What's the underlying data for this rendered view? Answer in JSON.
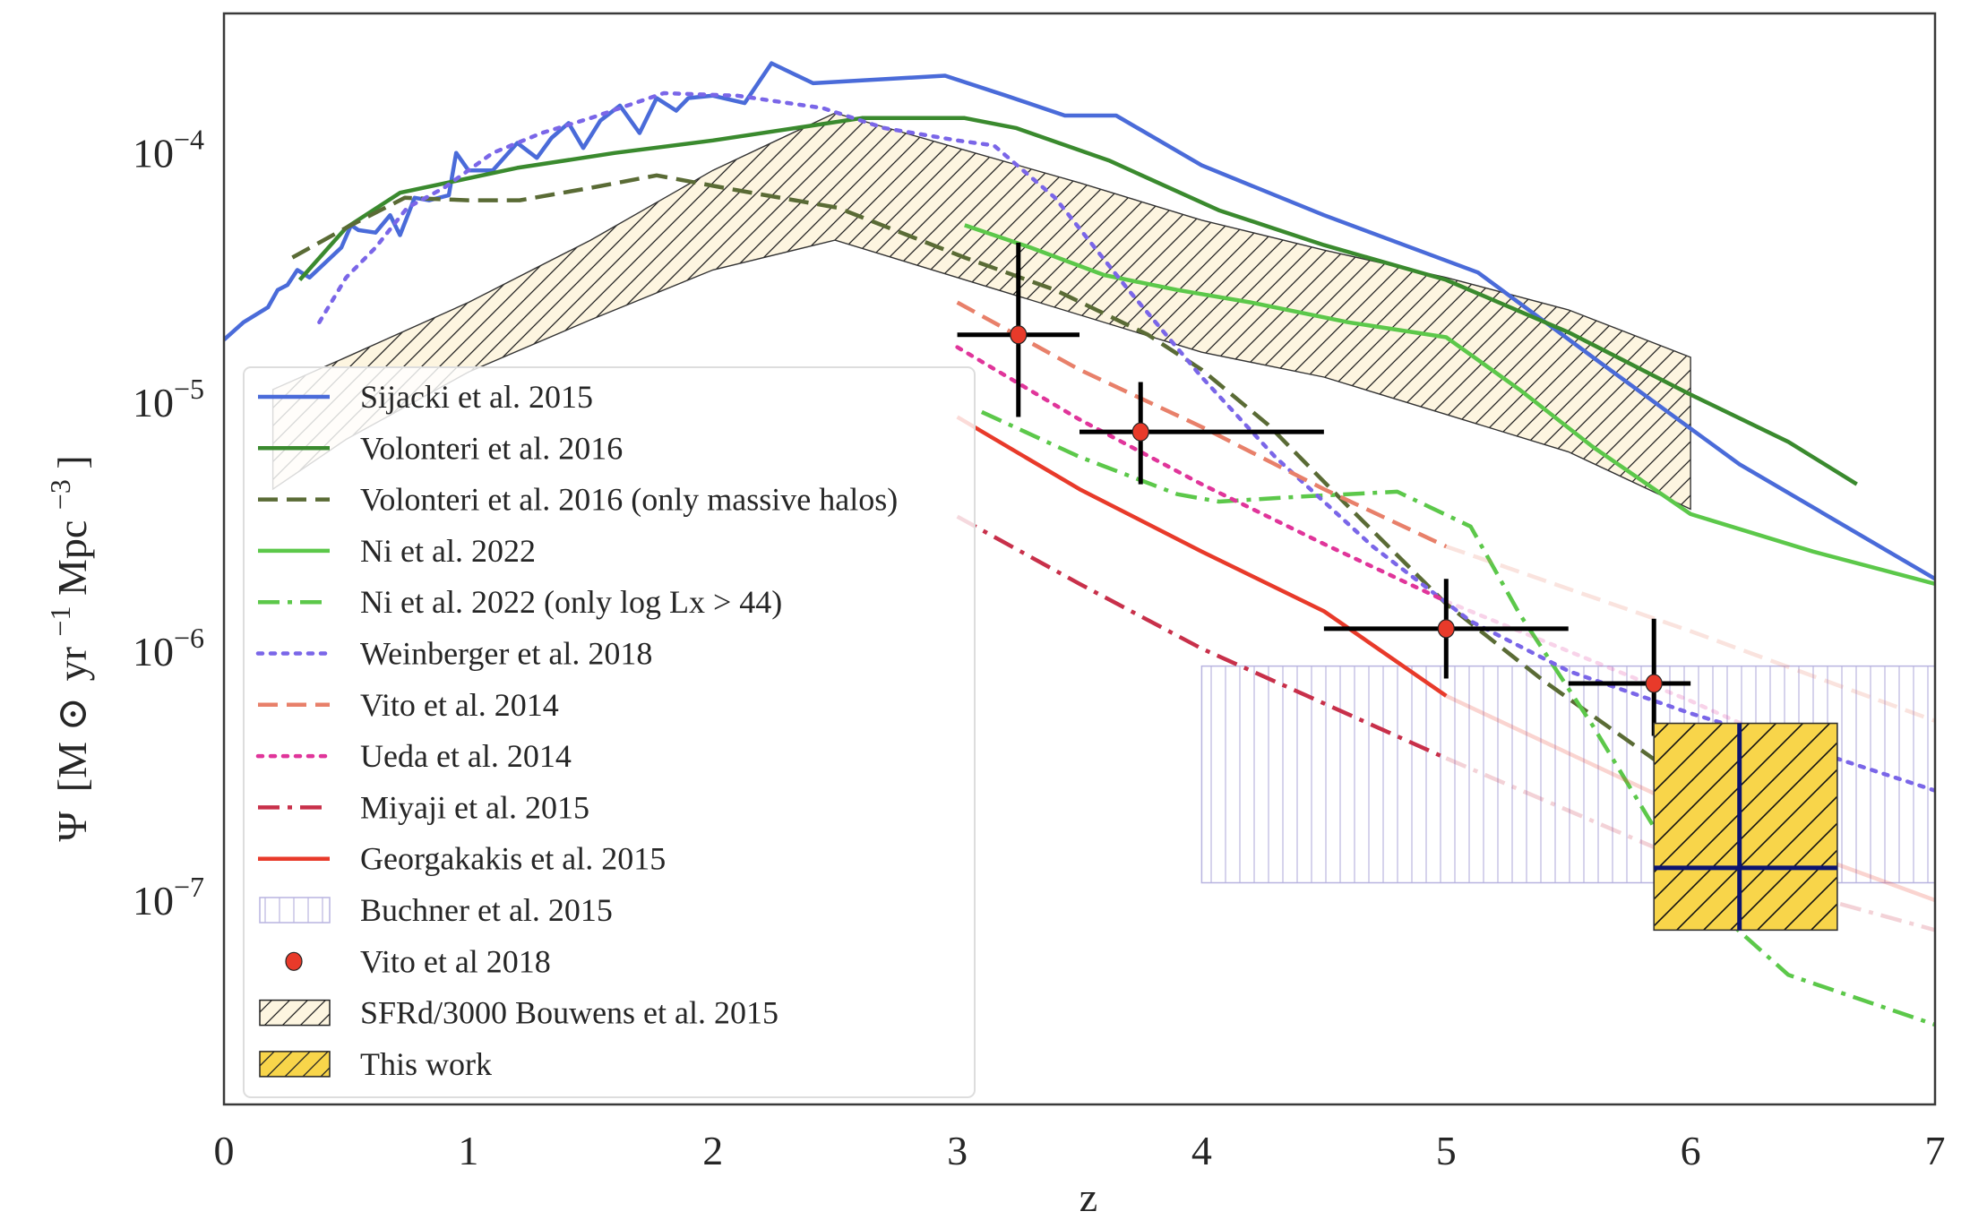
{
  "chart_data": {
    "type": "line",
    "title": "",
    "xlabel": "z",
    "ylabel": "Ψ [M⊙ yr⁻¹Mpc⁻³]",
    "ylabel_parts": {
      "psi": "Ψ",
      "open": "[M",
      "sun": "⊙",
      "yr": "yr",
      "yr_exp": "−1",
      "mpc": "Mpc",
      "mpc_exp": "−3",
      "close": "]"
    },
    "xlim": [
      0,
      7
    ],
    "ylim_log10": [
      -7.82,
      -3.44
    ],
    "yscale": "log",
    "grid": false,
    "legend_position": "lower-left",
    "x_ticks": [
      "0",
      "1",
      "2",
      "3",
      "4",
      "5",
      "6",
      "7"
    ],
    "x_tick_values": [
      0,
      1,
      2,
      3,
      4,
      5,
      6,
      7
    ],
    "y_ticks": [
      {
        "base": "10",
        "exp": "−4",
        "log": -4
      },
      {
        "base": "10",
        "exp": "−5",
        "log": -5
      },
      {
        "base": "10",
        "exp": "−6",
        "log": -6
      },
      {
        "base": "10",
        "exp": "−7",
        "log": -7
      }
    ],
    "series": [
      {
        "name": "Sijacki et al. 2015",
        "style": "solid",
        "color": "#4a6bd9",
        "x": [
          0.0,
          0.08,
          0.18,
          0.22,
          0.26,
          0.3,
          0.35,
          0.48,
          0.52,
          0.55,
          0.62,
          0.68,
          0.72,
          0.78,
          0.84,
          0.92,
          0.95,
          1.0,
          1.1,
          1.2,
          1.28,
          1.34,
          1.41,
          1.47,
          1.54,
          1.62,
          1.7,
          1.77,
          1.85,
          1.9,
          2.0,
          2.13,
          2.24,
          2.41,
          2.95,
          3.2,
          3.44,
          3.65,
          4.0,
          4.5,
          5.13,
          5.6,
          6.2,
          7.0
        ],
        "log10_y": [
          -4.75,
          -4.68,
          -4.62,
          -4.55,
          -4.53,
          -4.47,
          -4.5,
          -4.38,
          -4.29,
          -4.31,
          -4.32,
          -4.25,
          -4.33,
          -4.18,
          -4.19,
          -4.17,
          -4.0,
          -4.07,
          -4.07,
          -3.96,
          -4.02,
          -3.94,
          -3.88,
          -3.98,
          -3.87,
          -3.81,
          -3.92,
          -3.78,
          -3.83,
          -3.78,
          -3.77,
          -3.8,
          -3.64,
          -3.72,
          -3.69,
          -3.77,
          -3.85,
          -3.85,
          -4.05,
          -4.25,
          -4.48,
          -4.82,
          -5.25,
          -5.71
        ]
      },
      {
        "name": "Volonteri et al. 2016",
        "style": "solid",
        "color": "#3a8a2e",
        "x": [
          0.31,
          0.5,
          0.72,
          1.2,
          1.6,
          2.0,
          2.61,
          3.03,
          3.24,
          3.62,
          4.07,
          4.5,
          5.0,
          5.5,
          6.0,
          6.4,
          6.68
        ],
        "log10_y": [
          -4.51,
          -4.3,
          -4.16,
          -4.06,
          -4.0,
          -3.95,
          -3.86,
          -3.86,
          -3.9,
          -4.03,
          -4.23,
          -4.37,
          -4.51,
          -4.72,
          -4.97,
          -5.16,
          -5.33
        ]
      },
      {
        "name": "Volonteri et al. 2016 (only massive halos)",
        "style": "dashed",
        "color": "#5a6b35",
        "x": [
          0.28,
          0.5,
          0.74,
          1.0,
          1.21,
          1.5,
          1.77,
          2.1,
          2.51,
          3.03,
          3.4,
          3.78,
          4.0,
          4.27,
          4.6,
          5.0,
          5.4,
          5.83,
          6.2,
          6.55
        ],
        "log10_y": [
          -4.42,
          -4.3,
          -4.18,
          -4.19,
          -4.19,
          -4.14,
          -4.09,
          -4.15,
          -4.22,
          -4.42,
          -4.55,
          -4.73,
          -4.87,
          -5.09,
          -5.42,
          -5.81,
          -6.12,
          -6.42,
          -6.68,
          -6.88
        ]
      },
      {
        "name": "Ni et al. 2022",
        "style": "solid",
        "color": "#5cc84a",
        "x": [
          3.03,
          3.3,
          3.6,
          3.9,
          4.2,
          4.6,
          5.0,
          5.3,
          5.6,
          6.0,
          6.5,
          7.0
        ],
        "log10_y": [
          -4.29,
          -4.38,
          -4.49,
          -4.55,
          -4.6,
          -4.68,
          -4.74,
          -4.95,
          -5.18,
          -5.45,
          -5.6,
          -5.73
        ]
      },
      {
        "name": "Ni et al. 2022 (only log Lx > 44)",
        "style": "dashdot",
        "color": "#5cc84a",
        "x": [
          3.1,
          3.5,
          3.9,
          4.07,
          4.4,
          4.8,
          5.1,
          5.3,
          5.6,
          6.0,
          6.4,
          7.0
        ],
        "log10_y": [
          -5.04,
          -5.22,
          -5.37,
          -5.4,
          -5.38,
          -5.36,
          -5.5,
          -5.85,
          -6.3,
          -6.95,
          -7.3,
          -7.5
        ]
      },
      {
        "name": "Weinberger et al. 2018",
        "style": "dotted",
        "color": "#7a66e8",
        "x": [
          0.39,
          0.5,
          0.62,
          0.75,
          0.9,
          1.1,
          1.3,
          1.5,
          1.8,
          2.1,
          2.45,
          2.7,
          3.0,
          3.15,
          3.4,
          3.7,
          4.0,
          4.3,
          4.7,
          5.1,
          5.5,
          6.0,
          6.5,
          7.0
        ],
        "log10_y": [
          -4.68,
          -4.5,
          -4.38,
          -4.22,
          -4.14,
          -4.0,
          -3.92,
          -3.86,
          -3.76,
          -3.77,
          -3.82,
          -3.9,
          -3.95,
          -3.97,
          -4.18,
          -4.55,
          -4.9,
          -5.22,
          -5.58,
          -5.88,
          -6.08,
          -6.25,
          -6.4,
          -6.56
        ]
      },
      {
        "name": "Vito et al. 2014",
        "style": "dashed",
        "color": "#e8806a",
        "x": [
          3.0,
          3.5,
          4.0,
          4.5,
          5.0
        ],
        "log10_y": [
          -4.6,
          -4.87,
          -5.1,
          -5.35,
          -5.58
        ],
        "extrapolated": {
          "x": [
            5.0,
            6.0,
            7.0
          ],
          "log10_y": [
            -5.58,
            -5.92,
            -6.28
          ]
        }
      },
      {
        "name": "Ueda et al. 2014",
        "style": "dotted",
        "color": "#e0359a",
        "x": [
          3.0,
          3.5,
          4.0,
          4.5,
          5.0
        ],
        "log10_y": [
          -4.78,
          -5.07,
          -5.33,
          -5.57,
          -5.8
        ],
        "extrapolated": {
          "x": [
            5.0,
            6.0,
            6.5
          ],
          "log10_y": [
            -5.8,
            -6.2,
            -6.42
          ]
        }
      },
      {
        "name": "Miyaji et al. 2015",
        "style": "dashdot",
        "color": "#c8304a",
        "x": [
          3.0,
          3.5,
          4.0,
          4.5,
          5.0
        ],
        "log10_y": [
          -5.46,
          -5.73,
          -5.99,
          -6.21,
          -6.43
        ],
        "extrapolated": {
          "x": [
            5.0,
            6.0,
            7.0
          ],
          "log10_y": [
            -6.43,
            -6.85,
            -7.12
          ]
        }
      },
      {
        "name": "Georgakakis et al. 2015",
        "style": "solid",
        "color": "#e83a2a",
        "x": [
          3.0,
          3.5,
          4.0,
          4.5,
          5.0
        ],
        "log10_y": [
          -5.06,
          -5.35,
          -5.6,
          -5.84,
          -6.18
        ],
        "extrapolated": {
          "x": [
            5.0,
            6.0,
            7.0
          ],
          "log10_y": [
            -6.18,
            -6.64,
            -7.0
          ]
        }
      }
    ],
    "bands": [
      {
        "name": "SFRd/3000 Bouwens et al. 2015",
        "hatch": "//",
        "fill": "#fdf5e0",
        "edge": "#333333",
        "x": [
          0.2,
          0.5,
          1.0,
          1.5,
          2.0,
          2.5,
          3.0,
          3.5,
          4.0,
          4.5,
          5.0,
          5.5,
          6.0
        ],
        "log10_upper": [
          -4.95,
          -4.82,
          -4.6,
          -4.35,
          -4.07,
          -3.84,
          -3.98,
          -4.12,
          -4.27,
          -4.39,
          -4.5,
          -4.63,
          -4.82
        ],
        "log10_lower": [
          -5.35,
          -5.15,
          -4.88,
          -4.67,
          -4.47,
          -4.35,
          -4.5,
          -4.65,
          -4.8,
          -4.9,
          -5.05,
          -5.2,
          -5.43
        ]
      },
      {
        "name": "Buchner et al. 2015",
        "hatch": "||",
        "fill": "#ffffff",
        "edge": "#b8b4e0",
        "x": [
          4.0,
          7.0
        ],
        "log10_upper": [
          -6.06,
          -6.06
        ],
        "log10_lower": [
          -6.93,
          -6.93
        ]
      }
    ],
    "points": {
      "name": "Vito et al 2018",
      "color": "#e83a2a",
      "data": [
        {
          "z": 3.25,
          "z_lo": 3.0,
          "z_hi": 3.5,
          "log10_y": -4.73,
          "log10_lo": -5.06,
          "log10_hi": -4.36
        },
        {
          "z": 3.75,
          "z_lo": 3.5,
          "z_hi": 4.5,
          "log10_y": -5.12,
          "log10_lo": -5.33,
          "log10_hi": -4.92
        },
        {
          "z": 5.0,
          "z_lo": 4.5,
          "z_hi": 5.5,
          "log10_y": -5.91,
          "log10_lo": -6.11,
          "log10_hi": -5.71
        },
        {
          "z": 5.85,
          "z_lo": 5.5,
          "z_hi": 6.0,
          "log10_y": -6.13,
          "log10_lo": -6.34,
          "log10_hi": -5.87
        }
      ]
    },
    "this_work": {
      "name": "This work",
      "fill": "#f8d54a",
      "hatch": "//",
      "cross_color": "#0b1470",
      "z_lo": 5.85,
      "z_hi": 6.6,
      "log10_lo": -7.12,
      "log10_hi": -6.29,
      "z_center": 6.2,
      "log10_center": -6.87
    },
    "legend": [
      {
        "label": "Sijacki et al. 2015",
        "kind": "line",
        "style": "solid",
        "color": "#4a6bd9"
      },
      {
        "label": "Volonteri et al. 2016",
        "kind": "line",
        "style": "solid",
        "color": "#3a8a2e"
      },
      {
        "label": "Volonteri et al. 2016 (only massive halos)",
        "kind": "line",
        "style": "dashed",
        "color": "#5a6b35"
      },
      {
        "label": "Ni et al. 2022",
        "kind": "line",
        "style": "solid",
        "color": "#5cc84a"
      },
      {
        "label": "Ni et al. 2022 (only log Lx > 44)",
        "kind": "line",
        "style": "dashdot",
        "color": "#5cc84a"
      },
      {
        "label": "Weinberger et al. 2018",
        "kind": "line",
        "style": "dotted",
        "color": "#7a66e8"
      },
      {
        "label": "Vito et al. 2014",
        "kind": "line",
        "style": "dashed",
        "color": "#e8806a"
      },
      {
        "label": "Ueda et al. 2014",
        "kind": "line",
        "style": "dotted",
        "color": "#e0359a"
      },
      {
        "label": "Miyaji et al. 2015",
        "kind": "line",
        "style": "dashdot",
        "color": "#c8304a"
      },
      {
        "label": "Georgakakis et al. 2015",
        "kind": "line",
        "style": "solid",
        "color": "#e83a2a"
      },
      {
        "label": "Buchner et al. 2015",
        "kind": "vhatch",
        "color": "#b8b4e0"
      },
      {
        "label": "Vito et al 2018",
        "kind": "marker",
        "color": "#e83a2a"
      },
      {
        "label": "SFRd/3000 Bouwens et al. 2015",
        "kind": "dhatch",
        "color": "#fdf5e0"
      },
      {
        "label": "This work",
        "kind": "dhatch",
        "color": "#f8d54a"
      }
    ]
  }
}
